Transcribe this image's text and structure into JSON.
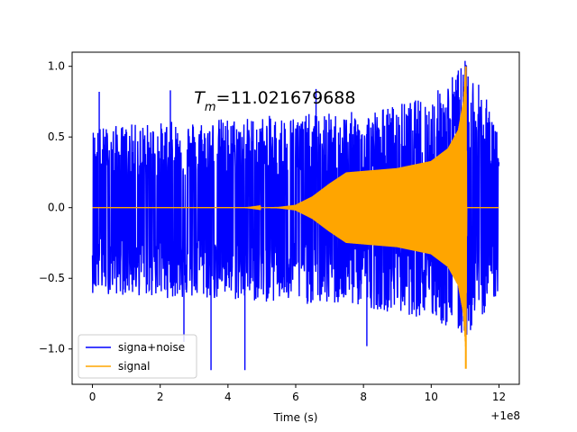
{
  "chart_data": {
    "type": "line",
    "title": "",
    "xlabel": "Time (s)",
    "ylabel": "",
    "x_offset_label": "+1e8",
    "xlim": [
      -0.6,
      12.6
    ],
    "ylim": [
      -1.25,
      1.1
    ],
    "x_ticks": [
      0,
      2,
      4,
      6,
      8,
      10,
      12
    ],
    "x_tick_labels": [
      "0",
      "2",
      "4",
      "6",
      "8",
      "10",
      "12"
    ],
    "y_ticks": [
      -1.0,
      -0.5,
      0.0,
      0.5,
      1.0
    ],
    "y_tick_labels": [
      "−1.0",
      "−0.5",
      "0.0",
      "0.5",
      "1.0"
    ],
    "annotation": {
      "symbol": "T",
      "subscript": "m",
      "text": "=11.021679688",
      "x": 3.0,
      "y": 0.78
    },
    "legend": {
      "placement": "lower-left",
      "entries": [
        "signa+noise",
        "signal"
      ]
    },
    "series": [
      {
        "name": "signa+noise",
        "color": "#0000ff",
        "x_range": [
          0,
          12
        ],
        "envelope_upper": [
          [
            0,
            0.52
          ],
          [
            2,
            0.55
          ],
          [
            4,
            0.58
          ],
          [
            6,
            0.6
          ],
          [
            8,
            0.62
          ],
          [
            10,
            0.72
          ],
          [
            11,
            0.95
          ],
          [
            12,
            0.55
          ]
        ],
        "envelope_lower": [
          [
            0,
            -0.55
          ],
          [
            2,
            -0.58
          ],
          [
            4,
            -0.6
          ],
          [
            6,
            -0.62
          ],
          [
            8,
            -0.64
          ],
          [
            10,
            -0.72
          ],
          [
            11,
            -0.85
          ],
          [
            12,
            -0.55
          ]
        ],
        "peaks": [
          [
            0.2,
            0.82
          ],
          [
            2.3,
            0.83
          ],
          [
            2.7,
            -0.95
          ],
          [
            3.5,
            -1.15
          ],
          [
            4.5,
            -1.15
          ],
          [
            6.6,
            0.84
          ],
          [
            10.8,
            0.97
          ],
          [
            11.4,
            0.87
          ],
          [
            8.1,
            -0.98
          ]
        ]
      },
      {
        "name": "signal",
        "color": "#ffa500",
        "x_range": [
          0,
          12
        ],
        "envelope": [
          [
            0,
            0.0
          ],
          [
            4.5,
            0.0
          ],
          [
            5.5,
            0.005
          ],
          [
            6.0,
            0.02
          ],
          [
            6.5,
            0.08
          ],
          [
            7.0,
            0.17
          ],
          [
            7.5,
            0.25
          ],
          [
            8.0,
            0.26
          ],
          [
            9.0,
            0.28
          ],
          [
            10.0,
            0.33
          ],
          [
            10.5,
            0.42
          ],
          [
            10.8,
            0.55
          ],
          [
            10.95,
            0.75
          ],
          [
            11.02,
            1.0
          ],
          [
            11.021679688,
            -1.14
          ],
          [
            11.05,
            0.0
          ],
          [
            12,
            0.0
          ]
        ]
      }
    ]
  }
}
